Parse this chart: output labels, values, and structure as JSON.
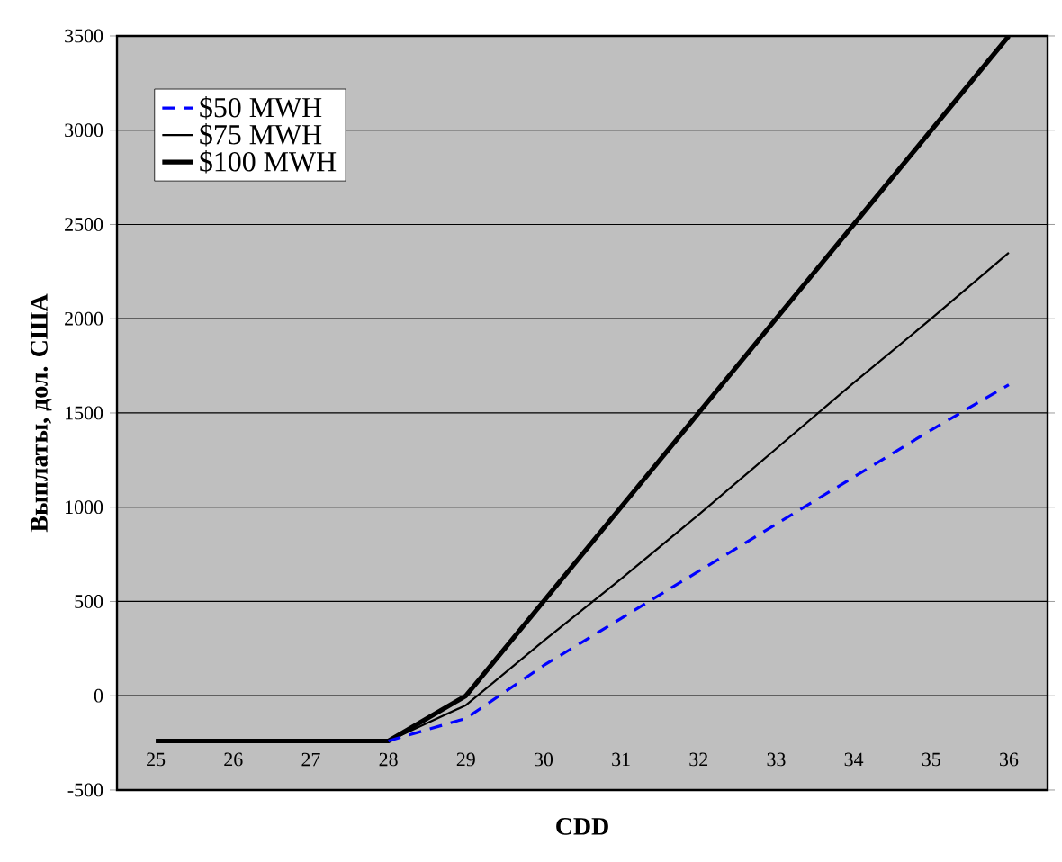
{
  "chart_data": {
    "type": "line",
    "xlabel": "CDD",
    "ylabel": "Выплаты, дол. США",
    "categories": [
      "25",
      "26",
      "27",
      "28",
      "29",
      "30",
      "31",
      "32",
      "33",
      "34",
      "35",
      "36"
    ],
    "series": [
      {
        "name": "$50 MWH",
        "color": "#0000ff",
        "line_style": "dashed",
        "values": [
          null,
          null,
          null,
          -240,
          -120,
          160,
          410,
          660,
          910,
          1160,
          1410,
          1650
        ]
      },
      {
        "name": "$75 MWH",
        "color": "#000000",
        "line_style": "solid",
        "values": [
          -240,
          -240,
          -240,
          -240,
          -50,
          290,
          620,
          960,
          1310,
          1660,
          2000,
          2350
        ]
      },
      {
        "name": "$100 MWH",
        "color": "#000000",
        "line_style": "solid",
        "values": [
          -240,
          -240,
          -240,
          -240,
          0,
          500,
          1000,
          1500,
          2000,
          2500,
          3000,
          3500
        ]
      }
    ],
    "ylim": [
      -500,
      3500
    ],
    "yticks": [
      -500,
      0,
      500,
      1000,
      1500,
      2000,
      2500,
      3000,
      3500
    ],
    "grid": "y",
    "legend": "top left",
    "marker": "none"
  }
}
